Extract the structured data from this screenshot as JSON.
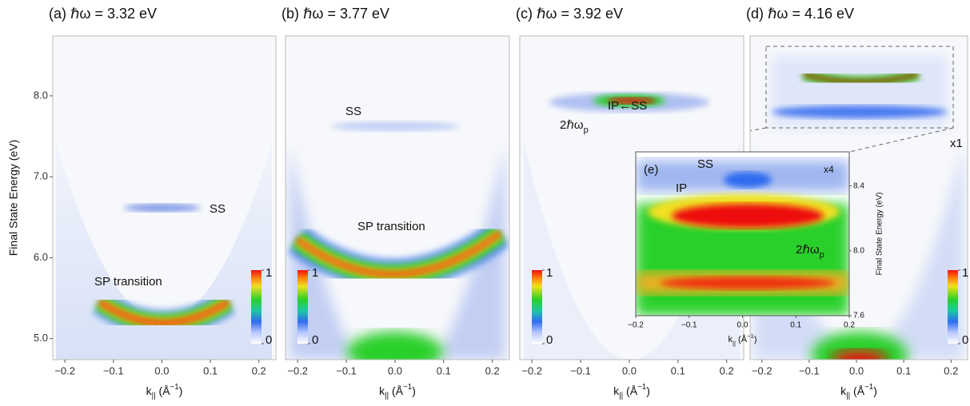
{
  "chart_data": [
    {
      "type": "image",
      "title": "(a) ℏω = 3.32 eV",
      "xlabel": [
        "k",
        "||",
        " (Å",
        "−1",
        ")"
      ],
      "ylabel": "Final State Energy (eV)",
      "xlim": [
        -0.225,
        0.235
      ],
      "ylim": [
        4.74,
        8.74
      ],
      "xticks": [
        {
          "value": -0.2,
          "label": "−0.2"
        },
        {
          "value": -0.1,
          "label": "−0.1"
        },
        {
          "value": 0,
          "label": "0.0"
        },
        0.1,
        0.2
      ],
      "yticks": [
        {
          "value": 5,
          "label": "5.0"
        },
        {
          "value": 6,
          "label": "6.0"
        },
        {
          "value": 7,
          "label": "7.0"
        },
        {
          "value": 8,
          "label": "8.0"
        }
      ],
      "annotations": [
        "SS",
        "SP transition"
      ],
      "colorbar_ticks": [
        0,
        1
      ]
    },
    {
      "type": "image",
      "title": "(b) ℏω = 3.77 eV",
      "xlabel": [
        "k",
        "||",
        " (Å",
        "−1",
        ")"
      ],
      "xlim": [
        -0.225,
        0.235
      ],
      "ylim": [
        4.74,
        8.74
      ],
      "xticks": [
        {
          "value": -0.2,
          "label": "−0.2"
        },
        {
          "value": -0.1,
          "label": "−0.1"
        },
        {
          "value": 0,
          "label": "0.0"
        },
        0.1,
        0.2
      ],
      "annotations": [
        "SS",
        "SP transition"
      ],
      "colorbar_ticks": [
        0,
        1
      ]
    },
    {
      "type": "image",
      "title": "(c) ℏω = 3.92 eV",
      "xlabel": [
        "k",
        "||",
        " (Å",
        "−1",
        ")"
      ],
      "xlim": [
        -0.225,
        0.235
      ],
      "ylim": [
        4.74,
        8.74
      ],
      "xticks": [
        {
          "value": -0.2,
          "label": "−0.2"
        },
        {
          "value": -0.1,
          "label": "−0.1"
        },
        {
          "value": 0,
          "label": "0.0"
        },
        0.1,
        0.2
      ],
      "annotations": [
        "IP←SS",
        "2ℏω"
      ],
      "annotation_sub": "p",
      "colorbar_ticks": [
        0,
        1
      ]
    },
    {
      "type": "image",
      "title": "(d) ℏω = 4.16 eV",
      "xlabel": [
        "k",
        "||",
        " (Å",
        "−1",
        ")"
      ],
      "xlim": [
        -0.225,
        0.235
      ],
      "ylim": [
        4.74,
        8.74
      ],
      "xticks": [
        {
          "value": -0.2,
          "label": "−0.2"
        },
        {
          "value": -0.1,
          "label": "−0.1"
        },
        {
          "value": 0,
          "label": "0.0"
        },
        0.1,
        0.2
      ],
      "annotations": [
        "x1"
      ],
      "colorbar_ticks": [
        0,
        1
      ]
    },
    {
      "type": "inset",
      "xlabel": [
        "k",
        "||",
        " (Å",
        "−1",
        ")"
      ],
      "ylabel": "Final State Energy (eV)",
      "xlim": [
        -0.2,
        0.2
      ],
      "ylim": [
        7.6,
        8.61
      ],
      "xticks": [
        {
          "value": -0.2,
          "label": "−0.2"
        },
        {
          "value": -0.1,
          "label": "−0.1"
        },
        {
          "value": 0,
          "label": "0.0"
        },
        0.1,
        0.2
      ],
      "yticks": [
        7.6,
        {
          "value": 8,
          "label": "8.0"
        },
        8.4
      ],
      "annotations": [
        "(e)",
        "SS",
        "IP",
        "x4",
        "2ℏω"
      ],
      "annotation_sub": "p"
    }
  ]
}
